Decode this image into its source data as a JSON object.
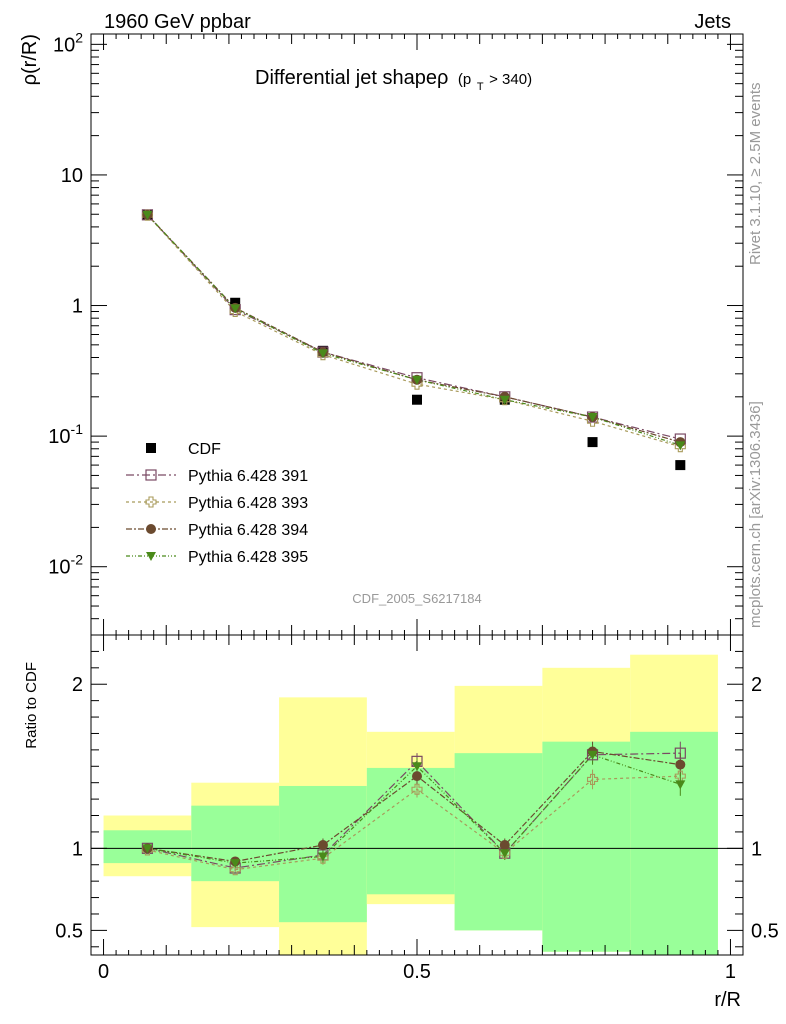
{
  "header": {
    "left": "1960 GeV ppbar",
    "right": "Jets"
  },
  "side_labels": {
    "rivet": "Rivet 3.1.10, ≥ 2.5M events",
    "mcplots": "mcplots.cern.ch [arXiv:1306.3436]"
  },
  "watermark": "CDF_2005_S6217184",
  "colors": {
    "cdf": "#000000",
    "p391": "#7a4a64",
    "p393": "#a89a5a",
    "p394": "#6b4a2f",
    "p395": "#4a8a1a",
    "band_yellow": "#ffff99",
    "band_green": "#99ff99"
  },
  "chart_data": [
    {
      "type": "line",
      "title": "Differential jet shapeρ",
      "title_sub": "(p",
      "title_subscript": "T",
      "title_tail": " > 340)",
      "ylabel": "ρ(r/R)",
      "yscale": "log",
      "ylim": [
        0.003,
        120
      ],
      "xlim": [
        -0.02,
        1.02
      ],
      "ytick_labels": [
        "10^-2",
        "10^-1",
        "1",
        "10",
        "10^2"
      ],
      "x": [
        0.07,
        0.21,
        0.35,
        0.5,
        0.64,
        0.78,
        0.92
      ],
      "series": [
        {
          "name": "CDF",
          "marker": "square",
          "values": [
            4.95,
            1.05,
            0.45,
            0.19,
            0.19,
            0.09,
            0.06
          ]
        },
        {
          "name": "Pythia 6.428 391",
          "marker": "open-square",
          "values": [
            4.95,
            0.93,
            0.44,
            0.28,
            0.2,
            0.14,
            0.095
          ]
        },
        {
          "name": "Pythia 6.428 393",
          "marker": "open-cross",
          "values": [
            4.92,
            0.9,
            0.42,
            0.25,
            0.19,
            0.13,
            0.083
          ]
        },
        {
          "name": "Pythia 6.428 394",
          "marker": "circle",
          "values": [
            4.95,
            0.96,
            0.44,
            0.27,
            0.2,
            0.14,
            0.09
          ]
        },
        {
          "name": "Pythia 6.428 395",
          "marker": "triangle-down",
          "values": [
            4.95,
            0.95,
            0.43,
            0.27,
            0.19,
            0.14,
            0.085
          ]
        }
      ]
    },
    {
      "type": "line",
      "ylabel": "Ratio to CDF",
      "xlabel": "r/R",
      "ylim": [
        0.35,
        2.3
      ],
      "xlim": [
        -0.02,
        1.02
      ],
      "xtick_labels": [
        "0",
        "0.5",
        "1"
      ],
      "ytick_labels": [
        "0.5",
        "1",
        "2"
      ],
      "x": [
        0.07,
        0.21,
        0.35,
        0.5,
        0.64,
        0.78,
        0.92
      ],
      "bin_edges": [
        0.0,
        0.14,
        0.28,
        0.42,
        0.56,
        0.7,
        0.84,
        0.98
      ],
      "band_yellow": [
        [
          0.83,
          1.2
        ],
        [
          0.52,
          1.4
        ],
        [
          0.35,
          1.92
        ],
        [
          0.66,
          1.71
        ],
        [
          0.5,
          1.99
        ],
        [
          0.37,
          2.1
        ],
        [
          0.35,
          2.18
        ]
      ],
      "band_green": [
        [
          0.91,
          1.11
        ],
        [
          0.8,
          1.26
        ],
        [
          0.55,
          1.38
        ],
        [
          0.72,
          1.49
        ],
        [
          0.5,
          1.58
        ],
        [
          0.37,
          1.65
        ],
        [
          0.35,
          1.71
        ]
      ],
      "series": [
        {
          "name": "Pythia 6.428 391",
          "values": [
            1.0,
            0.88,
            0.96,
            1.53,
            0.97,
            1.57,
            1.58
          ],
          "errors": [
            0.01,
            0.02,
            0.04,
            0.05,
            0.04,
            0.06,
            0.07
          ]
        },
        {
          "name": "Pythia 6.428 393",
          "values": [
            0.99,
            0.87,
            0.94,
            1.36,
            0.97,
            1.42,
            1.44
          ],
          "errors": [
            0.01,
            0.02,
            0.04,
            0.05,
            0.04,
            0.06,
            0.07
          ]
        },
        {
          "name": "Pythia 6.428 394",
          "values": [
            1.0,
            0.92,
            1.02,
            1.44,
            1.02,
            1.59,
            1.51
          ],
          "errors": [
            0.01,
            0.02,
            0.04,
            0.05,
            0.04,
            0.06,
            0.07
          ]
        },
        {
          "name": "Pythia 6.428 395",
          "values": [
            1.0,
            0.91,
            0.95,
            1.5,
            0.97,
            1.57,
            1.39
          ],
          "errors": [
            0.01,
            0.02,
            0.04,
            0.05,
            0.04,
            0.06,
            0.07
          ]
        }
      ]
    }
  ]
}
